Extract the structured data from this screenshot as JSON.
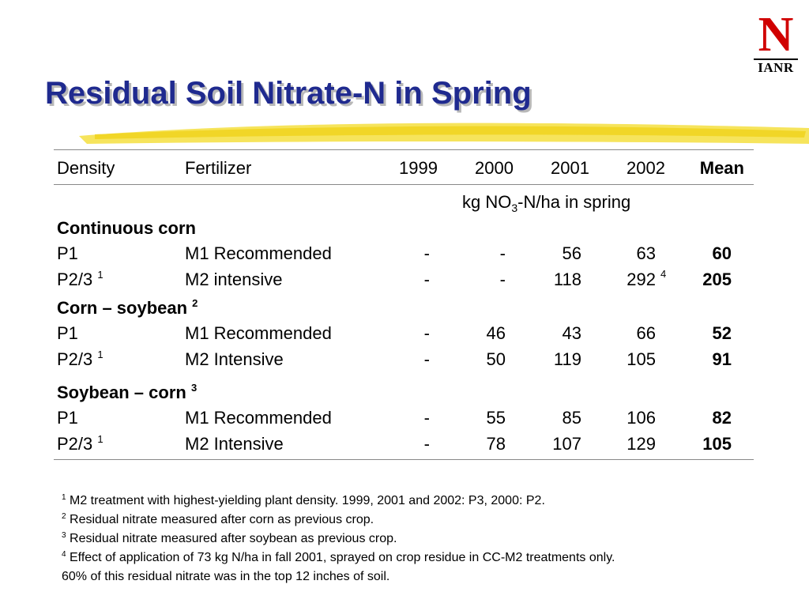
{
  "title": "Residual Soil Nitrate-N in Spring",
  "logo": {
    "monogram": "N",
    "text": "IANR"
  },
  "colors": {
    "title": "#1f2a8f",
    "accent_swoosh": "#f5e14a",
    "logo_red": "#d00000"
  },
  "table": {
    "headers": {
      "density": "Density",
      "fertilizer": "Fertilizer",
      "y1999": "1999",
      "y2000": "2000",
      "y2001": "2001",
      "y2002": "2002",
      "mean": "Mean"
    },
    "units_pre": "kg NO",
    "units_sub": "3",
    "units_post": "-N/ha in spring",
    "groups": [
      {
        "name": "Continuous corn",
        "sup": "",
        "rows": [
          {
            "density": "P1",
            "density_sup": "",
            "fertilizer": "M1 Recommended",
            "y1999": "-",
            "y2000": "-",
            "y2001": "56",
            "y2002": "63",
            "y2002_sup": "",
            "mean": "60"
          },
          {
            "density": "P2/3",
            "density_sup": "1",
            "fertilizer": "M2 intensive",
            "y1999": "-",
            "y2000": "-",
            "y2001": "118",
            "y2002": "292",
            "y2002_sup": "4",
            "mean": "205"
          }
        ]
      },
      {
        "name": "Corn – soybean",
        "sup": "2",
        "rows": [
          {
            "density": "P1",
            "density_sup": "",
            "fertilizer": "M1 Recommended",
            "y1999": "-",
            "y2000": "46",
            "y2001": "43",
            "y2002": "66",
            "y2002_sup": "",
            "mean": "52"
          },
          {
            "density": "P2/3",
            "density_sup": "1",
            "fertilizer": "M2 Intensive",
            "y1999": "-",
            "y2000": "50",
            "y2001": "119",
            "y2002": "105",
            "y2002_sup": "",
            "mean": "91"
          }
        ]
      },
      {
        "name": "Soybean – corn",
        "sup": "3",
        "rows": [
          {
            "density": "P1",
            "density_sup": "",
            "fertilizer": "M1 Recommended",
            "y1999": "-",
            "y2000": "55",
            "y2001": "85",
            "y2002": "106",
            "y2002_sup": "",
            "mean": "82"
          },
          {
            "density": "P2/3",
            "density_sup": "1",
            "fertilizer": "M2 Intensive",
            "y1999": "-",
            "y2000": "78",
            "y2001": "107",
            "y2002": "129",
            "y2002_sup": "",
            "mean": "105"
          }
        ]
      }
    ]
  },
  "footnotes": [
    {
      "mark": "1",
      "text": " M2 treatment with highest-yielding plant density. 1999, 2001 and 2002: P3, 2000: P2."
    },
    {
      "mark": "2",
      "text": " Residual nitrate measured after corn as previous crop."
    },
    {
      "mark": "3",
      "text": " Residual nitrate measured after soybean as previous crop."
    },
    {
      "mark": "4",
      "text": " Effect of application of 73 kg N/ha in fall 2001, sprayed on crop residue in CC-M2 treatments only."
    },
    {
      "mark": "",
      "text": "60% of this residual nitrate was in the top 12 inches of soil."
    }
  ]
}
